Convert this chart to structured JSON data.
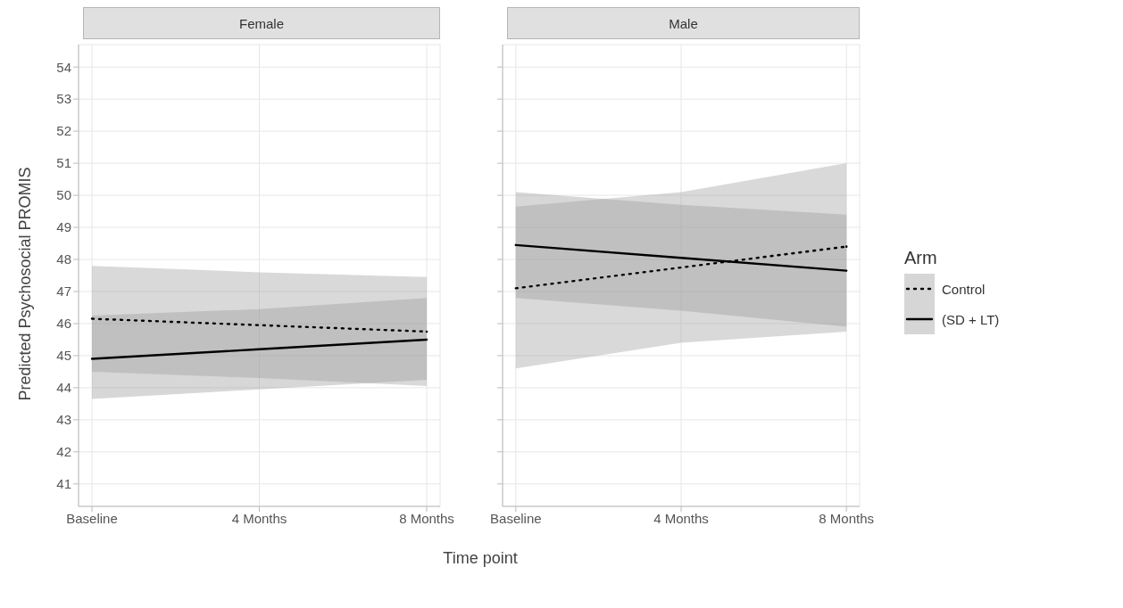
{
  "chart_data": [
    {
      "type": "line",
      "title": "Female",
      "xlabel": "Time point",
      "ylabel": "Predicted Psychosocial PROMIS",
      "legend_title": "Arm",
      "categories": [
        "Baseline",
        "4 Months",
        "8 Months"
      ],
      "ylim": [
        40.3,
        54.7
      ],
      "yticks": [
        41,
        42,
        43,
        44,
        45,
        46,
        47,
        48,
        49,
        50,
        51,
        52,
        53,
        54
      ],
      "grid": true,
      "legend": "right",
      "series": [
        {
          "name": "Control",
          "color": "#000000",
          "line_style": "dotted",
          "values": [
            46.15,
            45.95,
            45.75
          ],
          "lower": [
            44.5,
            44.3,
            44.05
          ],
          "upper": [
            47.8,
            47.6,
            47.45
          ]
        },
        {
          "name": "(SD + LT)",
          "color": "#000000",
          "line_style": "solid",
          "values": [
            44.9,
            45.2,
            45.5
          ],
          "lower": [
            43.65,
            43.95,
            44.25
          ],
          "upper": [
            46.25,
            46.45,
            46.8
          ]
        }
      ]
    },
    {
      "type": "line",
      "title": "Male",
      "categories": [
        "Baseline",
        "4 Months",
        "8 Months"
      ],
      "ylim": [
        40.3,
        54.7
      ],
      "yticks": [
        41,
        42,
        43,
        44,
        45,
        46,
        47,
        48,
        49,
        50,
        51,
        52,
        53,
        54
      ],
      "grid": true,
      "tick_labels": "x",
      "series": [
        {
          "color": "#000000",
          "line_style": "dotted",
          "values": [
            47.1,
            47.75,
            48.4
          ],
          "lower": [
            44.6,
            45.4,
            45.75
          ],
          "upper": [
            49.65,
            50.1,
            51.0
          ]
        },
        {
          "color": "#000000",
          "line_style": "solid",
          "values": [
            48.45,
            48.05,
            47.65
          ],
          "lower": [
            46.8,
            46.4,
            45.9
          ],
          "upper": [
            50.1,
            49.7,
            49.4
          ]
        }
      ]
    }
  ]
}
